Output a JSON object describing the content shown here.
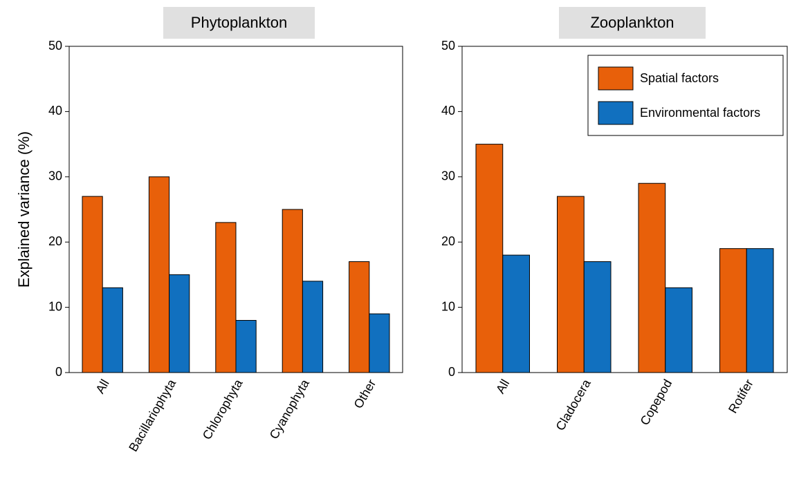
{
  "chart_data": [
    {
      "type": "bar",
      "title": "Phytoplankton",
      "y_label": "Explained variance (%)",
      "categories": [
        "All",
        "Bacillariophyta",
        "Chlorophyta",
        "Cyanophyta",
        "Other"
      ],
      "series": [
        {
          "color": "#e8600a",
          "values": [
            27,
            30,
            23,
            25,
            17
          ]
        },
        {
          "color": "#1170bf",
          "values": [
            13,
            15,
            8,
            14,
            9
          ]
        }
      ],
      "ylim": [
        0,
        50
      ],
      "yticks": [
        0,
        10,
        20,
        30,
        40,
        50
      ],
      "grid": false
    },
    {
      "type": "bar",
      "title": "Zooplankton",
      "categories": [
        "All",
        "Cladocera",
        "Copepod",
        "Rotifer"
      ],
      "series": [
        {
          "name": "Spatial factors",
          "color": "#e8600a",
          "values": [
            35,
            27,
            29,
            19
          ]
        },
        {
          "name": "Environmental factors",
          "color": "#1170bf",
          "values": [
            18,
            17,
            13,
            19
          ]
        }
      ],
      "ylim": [
        0,
        50
      ],
      "yticks": [
        0,
        10,
        20,
        30,
        40,
        50
      ],
      "grid": false,
      "legend": "upper right"
    }
  ]
}
